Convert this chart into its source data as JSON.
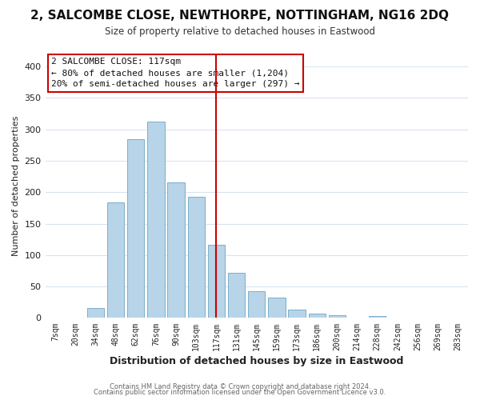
{
  "title": "2, SALCOMBE CLOSE, NEWTHORPE, NOTTINGHAM, NG16 2DQ",
  "subtitle": "Size of property relative to detached houses in Eastwood",
  "xlabel": "Distribution of detached houses by size in Eastwood",
  "ylabel": "Number of detached properties",
  "footer_lines": [
    "Contains HM Land Registry data © Crown copyright and database right 2024.",
    "Contains public sector information licensed under the Open Government Licence v3.0."
  ],
  "bar_labels": [
    "7sqm",
    "20sqm",
    "34sqm",
    "48sqm",
    "62sqm",
    "76sqm",
    "90sqm",
    "103sqm",
    "117sqm",
    "131sqm",
    "145sqm",
    "159sqm",
    "173sqm",
    "186sqm",
    "200sqm",
    "214sqm",
    "228sqm",
    "242sqm",
    "256sqm",
    "269sqm",
    "283sqm"
  ],
  "bar_values": [
    0,
    0,
    16,
    184,
    285,
    312,
    216,
    193,
    116,
    72,
    43,
    33,
    13,
    7,
    5,
    0,
    3,
    0,
    0,
    0,
    0
  ],
  "bar_color": "#b8d4e8",
  "bar_edge_color": "#7aafc8",
  "highlight_index": 8,
  "highlight_line_color": "#cc0000",
  "annotation_title": "2 SALCOMBE CLOSE: 117sqm",
  "annotation_line1": "← 80% of detached houses are smaller (1,204)",
  "annotation_line2": "20% of semi-detached houses are larger (297) →",
  "annotation_box_edge": "#cc0000",
  "ylim": [
    0,
    420
  ],
  "yticks": [
    0,
    50,
    100,
    150,
    200,
    250,
    300,
    350,
    400
  ],
  "background_color": "#ffffff",
  "grid_color": "#d8e4f0"
}
